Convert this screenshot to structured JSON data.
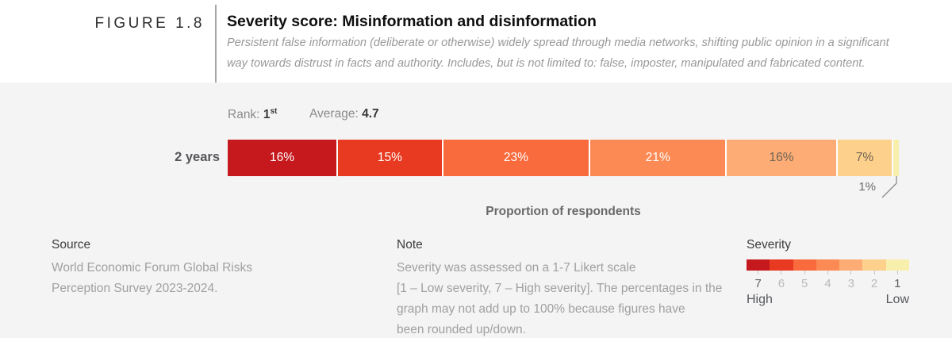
{
  "figure": {
    "label": "FIGURE 1.8",
    "title": "Severity score: Misinformation and disinformation",
    "description": "Persistent false information (deliberate or otherwise) widely spread through media networks, shifting public opinion in a significant way towards distrust in facts and authority. Includes, but is not limited to: false, imposter, manipulated and fabricated content."
  },
  "stats": {
    "rank_label": "Rank: ",
    "rank_value": "1",
    "rank_suffix": "st",
    "average_label": "Average: ",
    "average_value": "4.7"
  },
  "chart_data": {
    "type": "bar",
    "orientation": "horizontal-stacked",
    "title": "Severity score: Misinformation and disinformation",
    "row_label": "2 years",
    "xlabel": "Proportion of respondents",
    "categories": [
      "7",
      "6",
      "5",
      "4",
      "3",
      "2",
      "1"
    ],
    "series": [
      {
        "name": "2 years",
        "values": [
          16,
          15,
          23,
          21,
          16,
          7,
          1
        ]
      }
    ],
    "unit": "%",
    "segment_labels": [
      "16%",
      "15%",
      "23%",
      "21%",
      "16%",
      "7%",
      "1%"
    ],
    "colors": [
      "#c5191d",
      "#e73a21",
      "#f96a3d",
      "#fb8a55",
      "#fcac74",
      "#fdd08c",
      "#f9efad"
    ],
    "label_styles": [
      "light",
      "light",
      "light",
      "light",
      "dark",
      "dark",
      "callout"
    ],
    "callout_label": "1%",
    "rank": "1st",
    "average": 4.7,
    "xlim": [
      0,
      100
    ],
    "grid": false,
    "legend_position": "bottom-right"
  },
  "footer": {
    "source": {
      "heading": "Source",
      "lines": [
        "World Economic Forum Global Risks",
        "Perception Survey 2023-2024."
      ]
    },
    "note": {
      "heading": "Note",
      "lines": [
        "Severity was assessed on a 1-7 Likert scale",
        "[1 – Low severity, 7 – High severity]. The percentages in the",
        "graph may not add up to 100% because figures have",
        "been rounded up/down."
      ]
    },
    "legend": {
      "heading": "Severity",
      "numbers": [
        "7",
        "6",
        "5",
        "4",
        "3",
        "2",
        "1"
      ],
      "emphasized": [
        "7",
        "1"
      ],
      "high_label": "High",
      "low_label": "Low",
      "colors": [
        "#c5191d",
        "#e73a21",
        "#f96a3d",
        "#fb8a55",
        "#fcac74",
        "#fdd08c",
        "#f9efad"
      ]
    }
  },
  "colors": {
    "background_panel": "#f4f4f5",
    "background_header": "#ffffff",
    "divider": "#a6a6a6",
    "title_text": "#0f0f0f",
    "muted_text": "#999999",
    "severity_high": "#c5191d",
    "severity_low": "#f9efad"
  }
}
